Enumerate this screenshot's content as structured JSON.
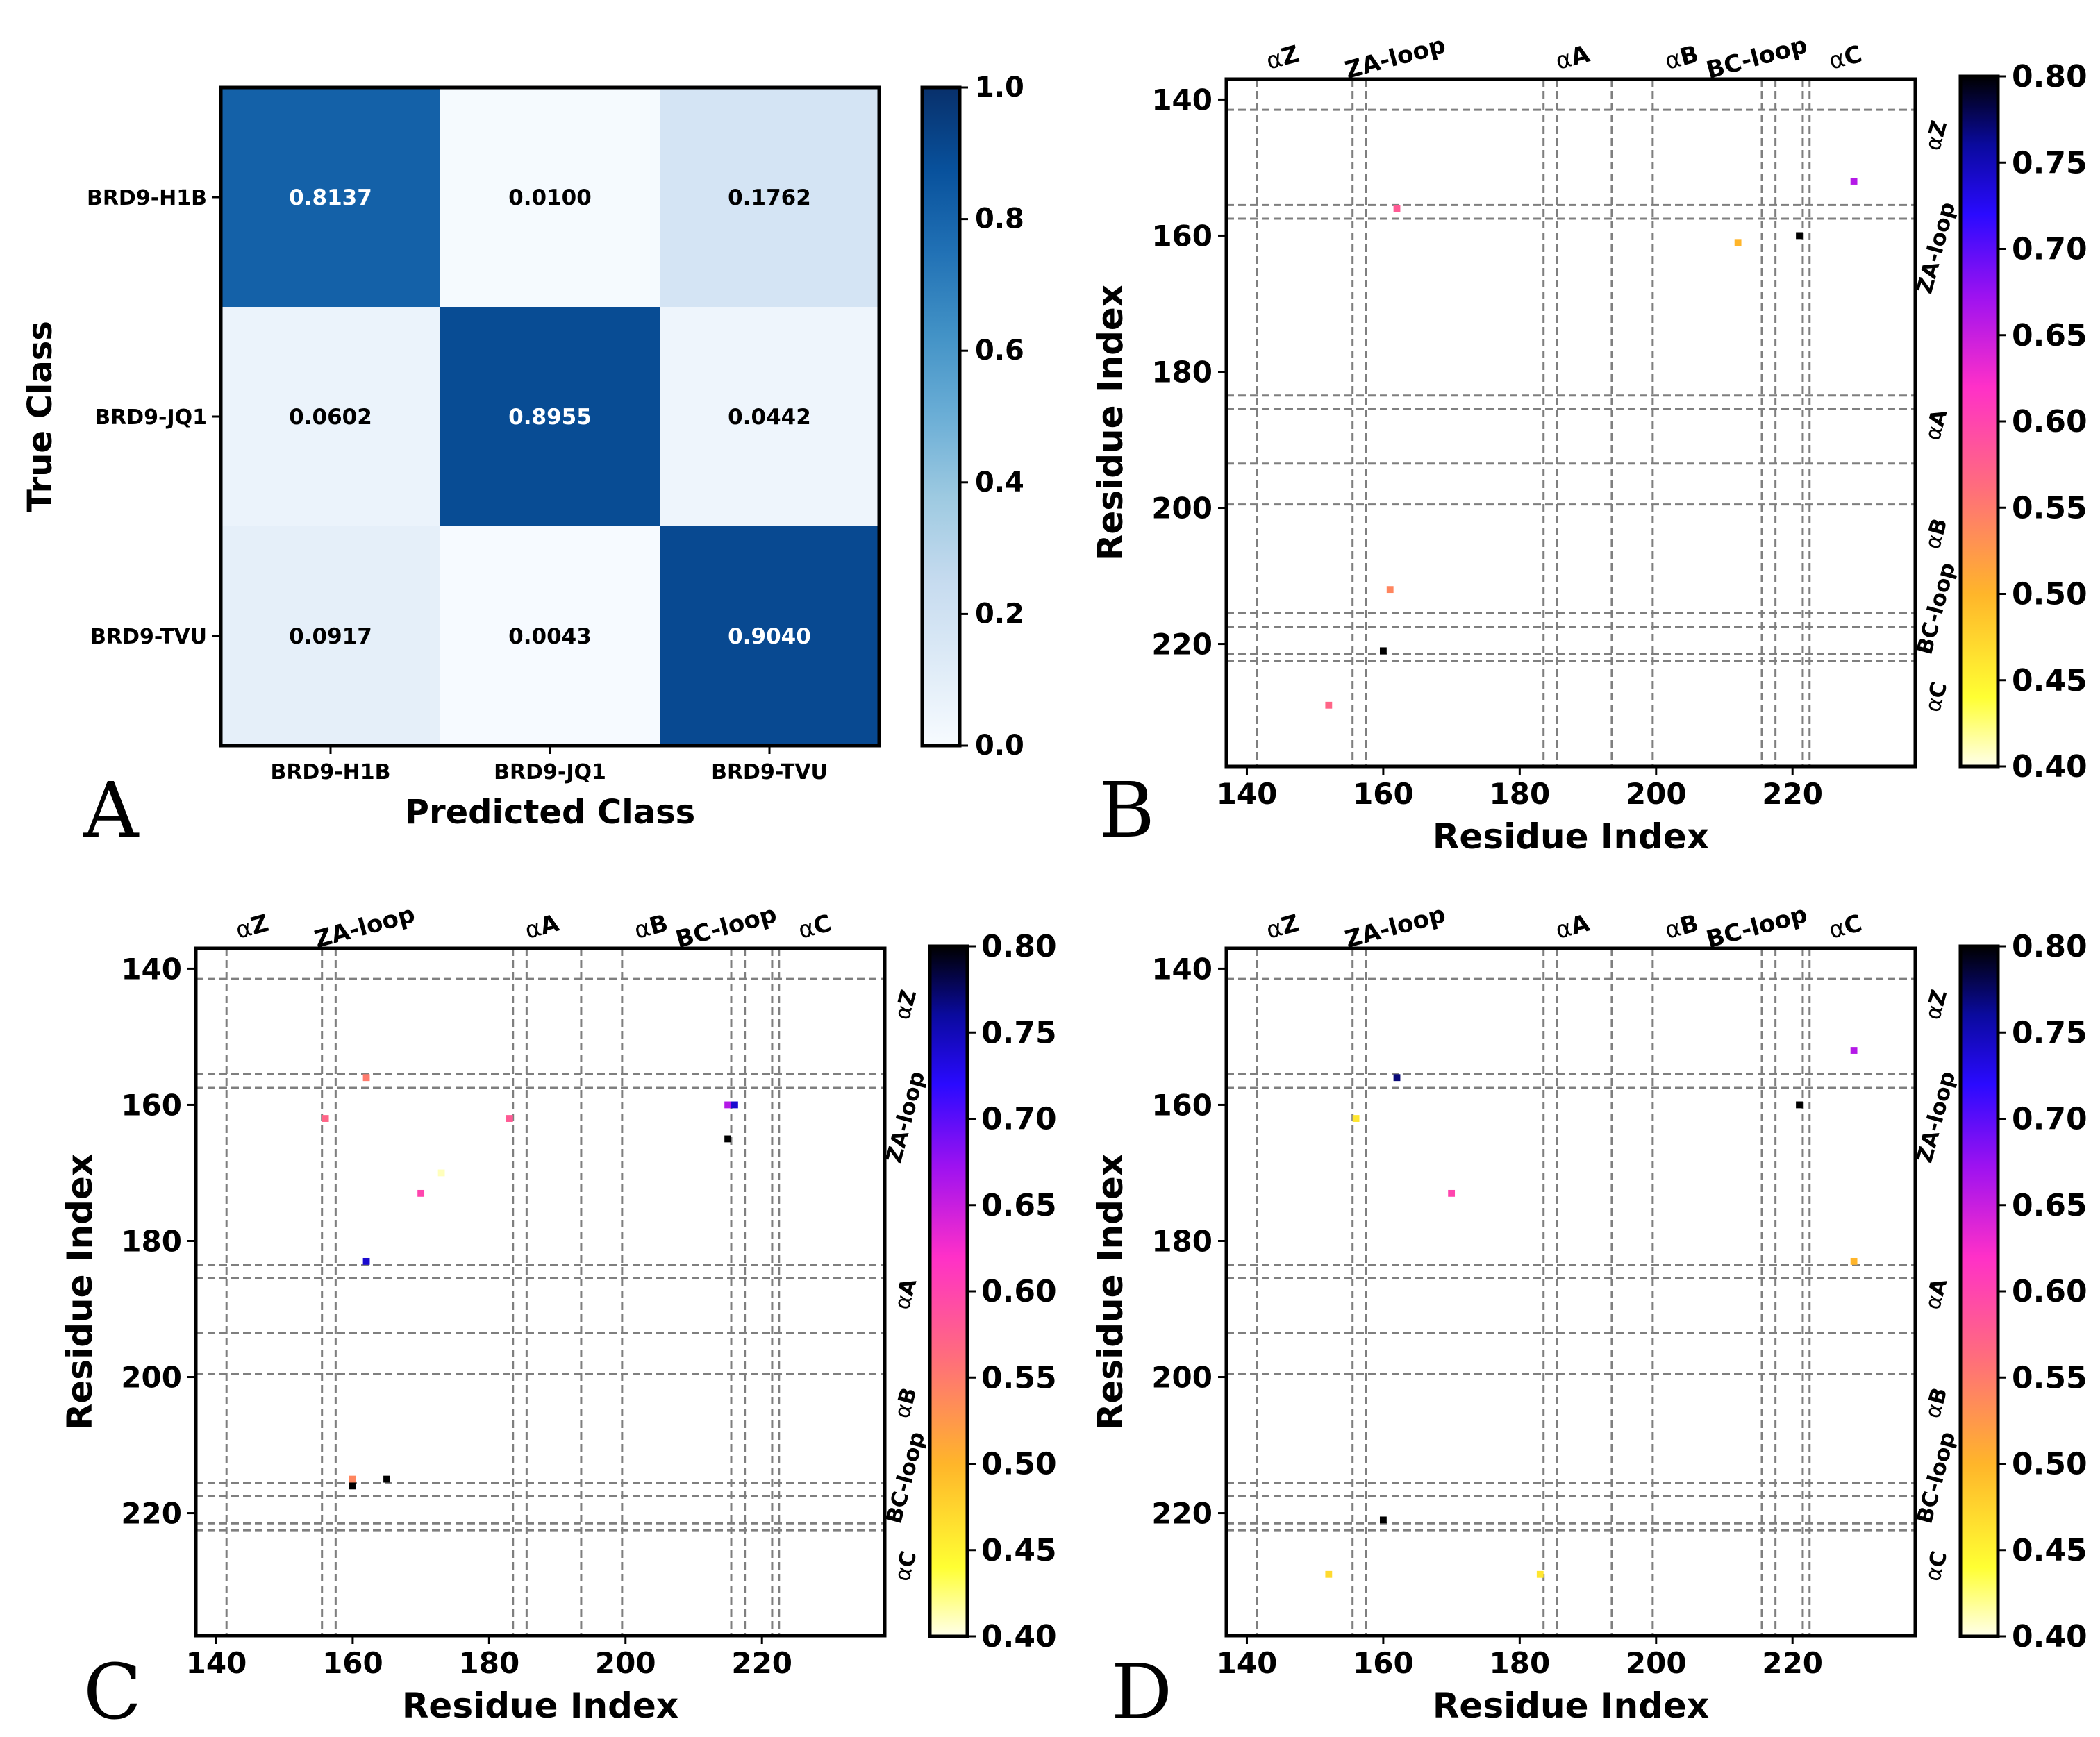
{
  "chart_data": [
    {
      "type": "heatmap",
      "panel": "A",
      "title": "",
      "xlabel": "Predicted Class",
      "ylabel": "True Class",
      "x_categories": [
        "BRD9-H1B",
        "BRD9-JQ1",
        "BRD9-TVU"
      ],
      "y_categories": [
        "BRD9-H1B",
        "BRD9-JQ1",
        "BRD9-TVU"
      ],
      "values": [
        [
          0.8137,
          0.01,
          0.1762
        ],
        [
          0.0602,
          0.8955,
          0.0442
        ],
        [
          0.0917,
          0.0043,
          0.904
        ]
      ],
      "value_labels": [
        [
          "0.8137",
          "0.0100",
          "0.1762"
        ],
        [
          "0.0602",
          "0.8955",
          "0.0442"
        ],
        [
          "0.0917",
          "0.0043",
          "0.9040"
        ]
      ],
      "colormap": "Blues",
      "colorbar": {
        "range": [
          0.0,
          1.0
        ],
        "ticks": [
          "0.0",
          "0.2",
          "0.4",
          "0.6",
          "0.8",
          "1.0"
        ]
      }
    },
    {
      "type": "heatmap",
      "panel": "B",
      "xlabel": "Residue Index",
      "ylabel": "Residue Index",
      "xlim": [
        137,
        238
      ],
      "ylim": [
        137,
        238
      ],
      "x_ticks": [
        "140",
        "160",
        "180",
        "200",
        "220"
      ],
      "y_ticks": [
        "140",
        "160",
        "180",
        "200",
        "220"
      ],
      "colormap": "gnuplot2_r",
      "colorbar": {
        "range": [
          0.4,
          0.8
        ],
        "ticks": [
          "0.40",
          "0.45",
          "0.50",
          "0.55",
          "0.60",
          "0.65",
          "0.70",
          "0.75",
          "0.80"
        ]
      },
      "points": [
        {
          "x": 162,
          "y": 156,
          "v": 0.58
        },
        {
          "x": 212,
          "y": 161,
          "v": 0.5
        },
        {
          "x": 221,
          "y": 160,
          "v": 0.8
        },
        {
          "x": 229,
          "y": 152,
          "v": 0.66
        },
        {
          "x": 161,
          "y": 212,
          "v": 0.54
        },
        {
          "x": 160,
          "y": 221,
          "v": 0.8
        },
        {
          "x": 152,
          "y": 229,
          "v": 0.57
        }
      ]
    },
    {
      "type": "heatmap",
      "panel": "C",
      "xlabel": "Residue Index",
      "ylabel": "Residue Index",
      "xlim": [
        137,
        238
      ],
      "ylim": [
        137,
        238
      ],
      "x_ticks": [
        "140",
        "160",
        "180",
        "200",
        "220"
      ],
      "y_ticks": [
        "140",
        "160",
        "180",
        "200",
        "220"
      ],
      "colormap": "gnuplot2_r",
      "colorbar": {
        "range": [
          0.4,
          0.8
        ],
        "ticks": [
          "0.40",
          "0.45",
          "0.50",
          "0.55",
          "0.60",
          "0.65",
          "0.70",
          "0.75",
          "0.80"
        ]
      },
      "points": [
        {
          "x": 162,
          "y": 156,
          "v": 0.55
        },
        {
          "x": 156,
          "y": 162,
          "v": 0.57
        },
        {
          "x": 183,
          "y": 162,
          "v": 0.58
        },
        {
          "x": 170,
          "y": 173,
          "v": 0.6
        },
        {
          "x": 173,
          "y": 170,
          "v": 0.41
        },
        {
          "x": 162,
          "y": 183,
          "v": 0.74
        },
        {
          "x": 215,
          "y": 160,
          "v": 0.66
        },
        {
          "x": 216,
          "y": 160,
          "v": 0.74
        },
        {
          "x": 215,
          "y": 165,
          "v": 0.8
        },
        {
          "x": 160,
          "y": 215,
          "v": 0.54
        },
        {
          "x": 160,
          "y": 216,
          "v": 0.8
        },
        {
          "x": 165,
          "y": 215,
          "v": 0.8
        }
      ]
    },
    {
      "type": "heatmap",
      "panel": "D",
      "xlabel": "Residue Index",
      "ylabel": "Residue Index",
      "xlim": [
        137,
        238
      ],
      "ylim": [
        137,
        238
      ],
      "x_ticks": [
        "140",
        "160",
        "180",
        "200",
        "220"
      ],
      "y_ticks": [
        "140",
        "160",
        "180",
        "200",
        "220"
      ],
      "colormap": "gnuplot2_r",
      "colorbar": {
        "range": [
          0.4,
          0.8
        ],
        "ticks": [
          "0.40",
          "0.45",
          "0.50",
          "0.55",
          "0.60",
          "0.65",
          "0.70",
          "0.75",
          "0.80"
        ]
      },
      "points": [
        {
          "x": 162,
          "y": 156,
          "v": 0.77
        },
        {
          "x": 156,
          "y": 162,
          "v": 0.46
        },
        {
          "x": 221,
          "y": 160,
          "v": 0.8
        },
        {
          "x": 229,
          "y": 152,
          "v": 0.66
        },
        {
          "x": 170,
          "y": 173,
          "v": 0.6
        },
        {
          "x": 229,
          "y": 183,
          "v": 0.5
        },
        {
          "x": 160,
          "y": 221,
          "v": 0.8
        },
        {
          "x": 152,
          "y": 229,
          "v": 0.47
        },
        {
          "x": 183,
          "y": 229,
          "v": 0.46
        }
      ]
    }
  ],
  "panel_labels": [
    "A",
    "B",
    "C",
    "D"
  ],
  "region_labels": {
    "top": [
      {
        "greek": "α",
        "text": "Z"
      },
      {
        "greek": "",
        "text": "ZA-loop"
      },
      {
        "greek": "α",
        "text": "A"
      },
      {
        "greek": "α",
        "text": "B"
      },
      {
        "greek": "",
        "text": "BC-loop"
      },
      {
        "greek": "α",
        "text": "C"
      }
    ],
    "right": [
      {
        "greek": "α",
        "text": "Z"
      },
      {
        "greek": "",
        "text": "ZA-loop"
      },
      {
        "greek": "α",
        "text": "A"
      },
      {
        "greek": "α",
        "text": "B"
      },
      {
        "greek": "",
        "text": "BC-loop"
      },
      {
        "greek": "α",
        "text": "C"
      }
    ]
  },
  "region_boundaries": [
    141.5,
    155.5,
    157.5,
    183.5,
    185.5,
    193.5,
    199.5,
    215.5,
    217.5,
    221.5,
    222.5
  ],
  "region_centers": [
    142.5,
    159,
    185,
    201,
    212,
    225
  ],
  "colors": {
    "grid_line": "#7f7f7f",
    "frame": "#000000",
    "blues_low": "#f7fbff",
    "blues_high": "#08306b"
  }
}
